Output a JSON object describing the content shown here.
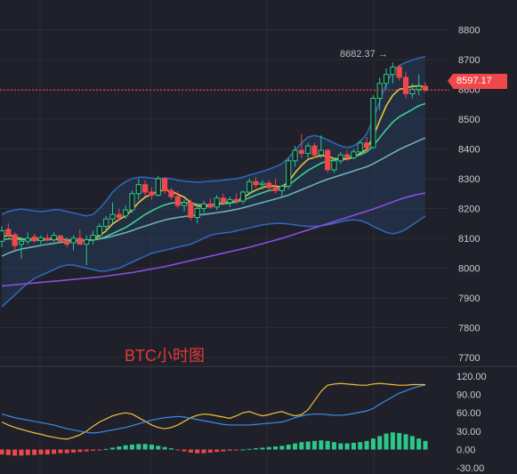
{
  "chart_data": [
    {
      "type": "candlestick",
      "title": "BTC小时图",
      "y_ticks": [
        8800,
        8700,
        8600,
        8500,
        8400,
        8300,
        8200,
        8100,
        8000,
        7900,
        7800,
        7700
      ],
      "ylim": [
        7670,
        8870
      ],
      "current_price": "8597.17",
      "max_label": "8682.37",
      "candles": [
        {
          "o": 8090,
          "h": 8140,
          "l": 8070,
          "c": 8125
        },
        {
          "o": 8130,
          "h": 8150,
          "l": 8100,
          "c": 8110
        },
        {
          "o": 8112,
          "h": 8120,
          "l": 8060,
          "c": 8075
        },
        {
          "o": 8080,
          "h": 8105,
          "l": 8030,
          "c": 8090
        },
        {
          "o": 8090,
          "h": 8120,
          "l": 8080,
          "c": 8100
        },
        {
          "o": 8105,
          "h": 8115,
          "l": 8085,
          "c": 8092
        },
        {
          "o": 8092,
          "h": 8110,
          "l": 8080,
          "c": 8102
        },
        {
          "o": 8100,
          "h": 8115,
          "l": 8090,
          "c": 8095
        },
        {
          "o": 8095,
          "h": 8120,
          "l": 8088,
          "c": 8110
        },
        {
          "o": 8108,
          "h": 8112,
          "l": 8085,
          "c": 8090
        },
        {
          "o": 8090,
          "h": 8105,
          "l": 8070,
          "c": 8080
        },
        {
          "o": 8085,
          "h": 8110,
          "l": 8060,
          "c": 8100
        },
        {
          "o": 8100,
          "h": 8130,
          "l": 8090,
          "c": 8080
        },
        {
          "o": 8080,
          "h": 8110,
          "l": 8010,
          "c": 8095
        },
        {
          "o": 8095,
          "h": 8125,
          "l": 8080,
          "c": 8110
        },
        {
          "o": 8110,
          "h": 8150,
          "l": 8100,
          "c": 8140
        },
        {
          "o": 8140,
          "h": 8175,
          "l": 8120,
          "c": 8165
        },
        {
          "o": 8165,
          "h": 8220,
          "l": 8150,
          "c": 8180
        },
        {
          "o": 8180,
          "h": 8200,
          "l": 8160,
          "c": 8170
        },
        {
          "o": 8175,
          "h": 8210,
          "l": 8165,
          "c": 8195
        },
        {
          "o": 8195,
          "h": 8260,
          "l": 8185,
          "c": 8250
        },
        {
          "o": 8250,
          "h": 8300,
          "l": 8230,
          "c": 8280
        },
        {
          "o": 8280,
          "h": 8295,
          "l": 8240,
          "c": 8255
        },
        {
          "o": 8255,
          "h": 8270,
          "l": 8230,
          "c": 8245
        },
        {
          "o": 8245,
          "h": 8310,
          "l": 8240,
          "c": 8300
        },
        {
          "o": 8300,
          "h": 8305,
          "l": 8250,
          "c": 8260
        },
        {
          "o": 8260,
          "h": 8270,
          "l": 8230,
          "c": 8240
        },
        {
          "o": 8240,
          "h": 8260,
          "l": 8200,
          "c": 8210
        },
        {
          "o": 8210,
          "h": 8230,
          "l": 8190,
          "c": 8220
        },
        {
          "o": 8220,
          "h": 8230,
          "l": 8160,
          "c": 8170
        },
        {
          "o": 8170,
          "h": 8210,
          "l": 8150,
          "c": 8200
        },
        {
          "o": 8200,
          "h": 8225,
          "l": 8185,
          "c": 8215
        },
        {
          "o": 8215,
          "h": 8235,
          "l": 8200,
          "c": 8205
        },
        {
          "o": 8205,
          "h": 8245,
          "l": 8195,
          "c": 8235
        },
        {
          "o": 8235,
          "h": 8250,
          "l": 8210,
          "c": 8220
        },
        {
          "o": 8220,
          "h": 8240,
          "l": 8205,
          "c": 8230
        },
        {
          "o": 8230,
          "h": 8250,
          "l": 8215,
          "c": 8225
        },
        {
          "o": 8225,
          "h": 8260,
          "l": 8215,
          "c": 8255
        },
        {
          "o": 8255,
          "h": 8300,
          "l": 8245,
          "c": 8290
        },
        {
          "o": 8290,
          "h": 8305,
          "l": 8270,
          "c": 8280
        },
        {
          "o": 8280,
          "h": 8295,
          "l": 8265,
          "c": 8285
        },
        {
          "o": 8285,
          "h": 8295,
          "l": 8260,
          "c": 8270
        },
        {
          "o": 8270,
          "h": 8300,
          "l": 8250,
          "c": 8260
        },
        {
          "o": 8260,
          "h": 8280,
          "l": 8240,
          "c": 8275
        },
        {
          "o": 8275,
          "h": 8370,
          "l": 8265,
          "c": 8360
        },
        {
          "o": 8360,
          "h": 8410,
          "l": 8340,
          "c": 8395
        },
        {
          "o": 8395,
          "h": 8450,
          "l": 8370,
          "c": 8385
        },
        {
          "o": 8385,
          "h": 8420,
          "l": 8370,
          "c": 8410
        },
        {
          "o": 8410,
          "h": 8420,
          "l": 8370,
          "c": 8380
        },
        {
          "o": 8380,
          "h": 8445,
          "l": 8370,
          "c": 8395
        },
        {
          "o": 8395,
          "h": 8400,
          "l": 8320,
          "c": 8330
        },
        {
          "o": 8330,
          "h": 8370,
          "l": 8320,
          "c": 8360
        },
        {
          "o": 8360,
          "h": 8390,
          "l": 8350,
          "c": 8380
        },
        {
          "o": 8380,
          "h": 8395,
          "l": 8360,
          "c": 8370
        },
        {
          "o": 8370,
          "h": 8400,
          "l": 8365,
          "c": 8390
        },
        {
          "o": 8390,
          "h": 8430,
          "l": 8380,
          "c": 8420
        },
        {
          "o": 8420,
          "h": 8440,
          "l": 8390,
          "c": 8405
        },
        {
          "o": 8405,
          "h": 8580,
          "l": 8400,
          "c": 8570
        },
        {
          "o": 8570,
          "h": 8640,
          "l": 8530,
          "c": 8620
        },
        {
          "o": 8620,
          "h": 8670,
          "l": 8600,
          "c": 8650
        },
        {
          "o": 8650,
          "h": 8690,
          "l": 8620,
          "c": 8675
        },
        {
          "o": 8675,
          "h": 8682,
          "l": 8630,
          "c": 8640
        },
        {
          "o": 8640,
          "h": 8660,
          "l": 8570,
          "c": 8585
        },
        {
          "o": 8585,
          "h": 8620,
          "l": 8570,
          "c": 8600
        },
        {
          "o": 8600,
          "h": 8650,
          "l": 8580,
          "c": 8610
        },
        {
          "o": 8610,
          "h": 8625,
          "l": 8590,
          "c": 8597
        }
      ],
      "overlays": [
        {
          "name": "ma-short",
          "color": "#f2c23a",
          "values": [
            8105,
            8110,
            8105,
            8098,
            8095,
            8097,
            8096,
            8098,
            8100,
            8098,
            8094,
            8093,
            8094,
            8093,
            8098,
            8108,
            8125,
            8148,
            8163,
            8175,
            8195,
            8220,
            8238,
            8248,
            8258,
            8262,
            8258,
            8248,
            8238,
            8220,
            8208,
            8205,
            8210,
            8215,
            8220,
            8222,
            8225,
            8235,
            8250,
            8262,
            8270,
            8277,
            8275,
            8272,
            8290,
            8320,
            8345,
            8365,
            8372,
            8378,
            8375,
            8368,
            8365,
            8366,
            8372,
            8385,
            8398,
            8440,
            8495,
            8545,
            8580,
            8600,
            8605,
            8610,
            8612,
            8608
          ]
        },
        {
          "name": "ma-mid",
          "color": "#3ecf8e",
          "values": [
            8095,
            8098,
            8098,
            8096,
            8094,
            8094,
            8094,
            8095,
            8096,
            8096,
            8095,
            8094,
            8093,
            8093,
            8094,
            8098,
            8106,
            8116,
            8126,
            8136,
            8150,
            8165,
            8180,
            8192,
            8203,
            8212,
            8218,
            8220,
            8220,
            8218,
            8214,
            8211,
            8212,
            8214,
            8216,
            8218,
            8222,
            8228,
            8236,
            8245,
            8253,
            8260,
            8264,
            8267,
            8278,
            8295,
            8312,
            8328,
            8340,
            8352,
            8360,
            8363,
            8366,
            8370,
            8375,
            8380,
            8390,
            8410,
            8438,
            8465,
            8490,
            8508,
            8520,
            8532,
            8545,
            8552
          ]
        },
        {
          "name": "ma-long",
          "color": "#6fb3b0",
          "values": [
            8040,
            8050,
            8058,
            8064,
            8068,
            8072,
            8076,
            8080,
            8083,
            8086,
            8088,
            8090,
            8092,
            8093,
            8095,
            8098,
            8102,
            8107,
            8113,
            8119,
            8126,
            8134,
            8141,
            8148,
            8155,
            8161,
            8166,
            8170,
            8173,
            8176,
            8178,
            8180,
            8183,
            8186,
            8189,
            8193,
            8197,
            8202,
            8208,
            8214,
            8220,
            8226,
            8232,
            8238,
            8245,
            8254,
            8263,
            8272,
            8281,
            8290,
            8298,
            8305,
            8312,
            8319,
            8326,
            8333,
            8340,
            8350,
            8362,
            8374,
            8386,
            8398,
            8408,
            8418,
            8428,
            8437
          ]
        },
        {
          "name": "ma-very-long",
          "color": "#8a4ee0",
          "values": [
            7940,
            7942,
            7944,
            7946,
            7948,
            7950,
            7952,
            7954,
            7956,
            7958,
            7960,
            7962,
            7964,
            7966,
            7968,
            7970,
            7973,
            7976,
            7979,
            7982,
            7985,
            7989,
            7993,
            7997,
            8001,
            8005,
            8010,
            8015,
            8020,
            8025,
            8030,
            8035,
            8040,
            8045,
            8050,
            8055,
            8060,
            8065,
            8070,
            8076,
            8082,
            8088,
            8094,
            8100,
            8107,
            8114,
            8121,
            8128,
            8135,
            8142,
            8149,
            8156,
            8163,
            8170,
            8177,
            8184,
            8191,
            8198,
            8206,
            8214,
            8222,
            8230,
            8237,
            8243,
            8248,
            8252
          ]
        }
      ],
      "band": {
        "upper": [
          8180,
          8190,
          8195,
          8198,
          8195,
          8192,
          8190,
          8192,
          8196,
          8195,
          8190,
          8185,
          8180,
          8175,
          8180,
          8200,
          8225,
          8255,
          8275,
          8290,
          8300,
          8305,
          8305,
          8302,
          8300,
          8302,
          8300,
          8295,
          8292,
          8290,
          8288,
          8290,
          8292,
          8293,
          8295,
          8298,
          8300,
          8305,
          8312,
          8318,
          8325,
          8332,
          8340,
          8350,
          8370,
          8395,
          8420,
          8440,
          8445,
          8440,
          8430,
          8420,
          8410,
          8405,
          8410,
          8425,
          8450,
          8500,
          8560,
          8620,
          8660,
          8680,
          8690,
          8698,
          8705,
          8710
        ],
        "lower": [
          7870,
          7890,
          7910,
          7930,
          7950,
          7965,
          7975,
          7985,
          7995,
          8005,
          8010,
          8010,
          8005,
          8000,
          7995,
          7990,
          7990,
          7995,
          8000,
          8010,
          8020,
          8030,
          8040,
          8050,
          8055,
          8060,
          8065,
          8070,
          8075,
          8080,
          8090,
          8100,
          8110,
          8115,
          8118,
          8120,
          8125,
          8130,
          8135,
          8140,
          8145,
          8148,
          8150,
          8150,
          8148,
          8145,
          8142,
          8140,
          8140,
          8142,
          8145,
          8150,
          8155,
          8160,
          8162,
          8160,
          8152,
          8140,
          8130,
          8120,
          8115,
          8120,
          8130,
          8145,
          8160,
          8175
        ]
      }
    },
    {
      "type": "macd",
      "y_ticks": [
        "120.00",
        "90.00",
        "60.00",
        "30.00",
        "0.00",
        "-30.00"
      ],
      "ylim": [
        -40,
        130
      ],
      "macd": [
        58,
        55,
        52,
        50,
        48,
        46,
        44,
        42,
        40,
        37,
        34,
        32,
        30,
        28,
        27,
        28,
        30,
        32,
        34,
        36,
        39,
        42,
        45,
        48,
        50,
        52,
        53,
        54,
        53,
        51,
        49,
        47,
        45,
        43,
        41,
        40,
        40,
        40,
        40,
        41,
        42,
        43,
        44,
        45,
        48,
        52,
        55,
        57,
        58,
        58,
        57,
        56,
        56,
        57,
        59,
        61,
        63,
        67,
        74,
        80,
        86,
        92,
        96,
        100,
        103,
        105
      ],
      "signal": [
        45,
        40,
        36,
        33,
        30,
        27,
        25,
        22,
        20,
        18,
        17,
        20,
        24,
        30,
        38,
        45,
        50,
        55,
        58,
        60,
        58,
        52,
        46,
        40,
        36,
        34,
        36,
        40,
        46,
        52,
        56,
        58,
        57,
        55,
        53,
        51,
        55,
        60,
        62,
        58,
        55,
        57,
        60,
        62,
        58,
        55,
        57,
        65,
        80,
        95,
        105,
        107,
        108,
        107,
        106,
        105,
        105,
        107,
        108,
        107,
        106,
        105,
        105,
        106,
        106,
        106
      ],
      "hist": [
        -8,
        -9,
        -10,
        -10,
        -9,
        -9,
        -8,
        -8,
        -7,
        -6,
        -6,
        -5,
        -4,
        -3,
        -2,
        -1,
        1,
        3,
        5,
        7,
        8,
        9,
        9,
        8,
        6,
        4,
        2,
        -1,
        -3,
        -5,
        -6,
        -6,
        -5,
        -4,
        -3,
        -2,
        -1,
        0,
        1,
        2,
        3,
        4,
        5,
        6,
        8,
        10,
        12,
        13,
        14,
        15,
        14,
        12,
        10,
        10,
        11,
        12,
        14,
        18,
        22,
        26,
        28,
        27,
        25,
        22,
        18,
        14
      ]
    }
  ],
  "title_label": "BTC小时图",
  "price_badge": "8597.17",
  "max_label": "8682.37 →"
}
